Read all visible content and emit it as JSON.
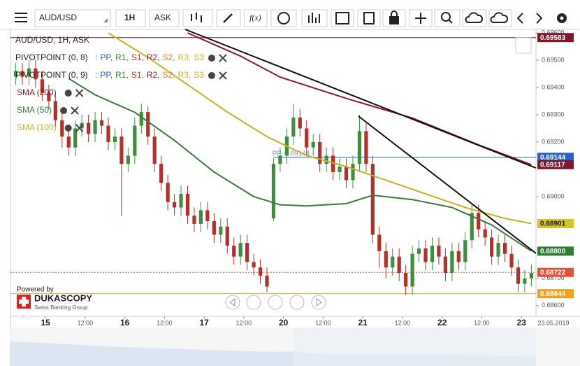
{
  "toolbar": {
    "symbol": "AUD/USD",
    "period": "1H",
    "side": "ASK",
    "formula": "f(x)"
  },
  "chart_data": {
    "type": "candlestick",
    "title": "AUD/USD, 1H, ASK",
    "open": [
      0.6944,
      0.6946,
      0.6944,
      0.6947,
      0.6943,
      0.6938,
      0.6935,
      0.6928,
      0.6922,
      0.6918,
      0.6925,
      0.6927,
      0.6923,
      0.6928,
      0.6926,
      0.692,
      0.6922,
      0.6912,
      0.6915,
      0.6926,
      0.6931,
      0.6922,
      0.6912,
      0.6905,
      0.6898,
      0.6896,
      0.6901,
      0.6893,
      0.689,
      0.6895,
      0.6891,
      0.6886,
      0.6889,
      0.6882,
      0.6878,
      0.6883,
      0.6876,
      0.6874,
      0.6871,
      0.6892,
      0.6912,
      0.6915,
      0.6922,
      0.6929,
      0.6925,
      0.6918,
      0.692,
      0.6912,
      0.6915,
      0.6909,
      0.6911,
      0.6906,
      0.6912,
      0.6924,
      0.6912,
      0.6886,
      0.688,
      0.6874,
      0.6878,
      0.6872,
      0.6867,
      0.6879,
      0.6881,
      0.6876,
      0.6882,
      0.6878,
      0.6872,
      0.688,
      0.6876,
      0.6884,
      0.6894,
      0.6888,
      0.6885,
      0.6878,
      0.6883,
      0.6879,
      0.6874,
      0.6868,
      0.687
    ],
    "high": [
      0.6949,
      0.6949,
      0.695,
      0.695,
      0.6946,
      0.6941,
      0.6938,
      0.6931,
      0.6925,
      0.6928,
      0.693,
      0.693,
      0.6931,
      0.6931,
      0.6929,
      0.6925,
      0.6925,
      0.6918,
      0.6929,
      0.6934,
      0.6933,
      0.6925,
      0.6915,
      0.6908,
      0.6901,
      0.6904,
      0.6904,
      0.6896,
      0.6898,
      0.6898,
      0.6894,
      0.6892,
      0.6892,
      0.6885,
      0.6886,
      0.6886,
      0.6879,
      0.6877,
      0.6874,
      0.6914,
      0.6918,
      0.6925,
      0.6934,
      0.6932,
      0.6928,
      0.6923,
      0.6923,
      0.6918,
      0.6918,
      0.6914,
      0.6914,
      0.6915,
      0.693,
      0.6927,
      0.6915,
      0.6889,
      0.6883,
      0.6881,
      0.6881,
      0.6875,
      0.6882,
      0.6884,
      0.6884,
      0.6885,
      0.6885,
      0.6881,
      0.6883,
      0.6883,
      0.6887,
      0.6897,
      0.6897,
      0.6891,
      0.6888,
      0.6886,
      0.6886,
      0.6882,
      0.6877,
      0.6873,
      0.6875
    ],
    "low": [
      0.6941,
      0.6941,
      0.6941,
      0.694,
      0.6935,
      0.6932,
      0.6925,
      0.6918,
      0.6915,
      0.6915,
      0.6922,
      0.692,
      0.692,
      0.6923,
      0.6917,
      0.6917,
      0.6893,
      0.6909,
      0.6912,
      0.6923,
      0.6919,
      0.6909,
      0.6902,
      0.6895,
      0.6893,
      0.6893,
      0.689,
      0.6887,
      0.6887,
      0.6888,
      0.6883,
      0.6883,
      0.6879,
      0.6875,
      0.6875,
      0.6873,
      0.6871,
      0.6868,
      0.6865,
      0.6891,
      0.6909,
      0.6912,
      0.6919,
      0.6922,
      0.6915,
      0.6915,
      0.6909,
      0.6909,
      0.6906,
      0.6906,
      0.6903,
      0.6903,
      0.6909,
      0.6909,
      0.6883,
      0.6874,
      0.687,
      0.6871,
      0.6869,
      0.6864,
      0.6864,
      0.6876,
      0.6873,
      0.6873,
      0.6875,
      0.6869,
      0.6869,
      0.6873,
      0.6873,
      0.6881,
      0.6885,
      0.6882,
      0.6875,
      0.6875,
      0.6876,
      0.6871,
      0.6865,
      0.6865,
      0.6867
    ],
    "close": [
      0.6946,
      0.6944,
      0.6947,
      0.6943,
      0.6938,
      0.6935,
      0.6928,
      0.6922,
      0.6918,
      0.6925,
      0.6927,
      0.6923,
      0.6928,
      0.6926,
      0.692,
      0.6922,
      0.6912,
      0.6915,
      0.6926,
      0.6931,
      0.6922,
      0.6912,
      0.6905,
      0.6898,
      0.6896,
      0.6901,
      0.6893,
      0.689,
      0.6895,
      0.6891,
      0.6886,
      0.6889,
      0.6882,
      0.6878,
      0.6883,
      0.6876,
      0.6874,
      0.6871,
      0.6867,
      0.6912,
      0.6915,
      0.6922,
      0.6929,
      0.6925,
      0.6918,
      0.692,
      0.6912,
      0.6915,
      0.6909,
      0.6911,
      0.6906,
      0.6912,
      0.6924,
      0.6912,
      0.6886,
      0.688,
      0.6874,
      0.6878,
      0.6872,
      0.6867,
      0.6879,
      0.6881,
      0.6876,
      0.6882,
      0.6878,
      0.6872,
      0.688,
      0.6876,
      0.6884,
      0.6894,
      0.6888,
      0.6885,
      0.6878,
      0.6883,
      0.6879,
      0.6874,
      0.6868,
      0.687,
      0.6872
    ],
    "up_color": "#3e8e3e",
    "down_color": "#b3312b",
    "xlim": [
      -0.8,
      78.7
    ],
    "xticks": [
      {
        "value": 4.5,
        "label": "15"
      },
      {
        "value": 10.5,
        "label": "12:00"
      },
      {
        "value": 16.5,
        "label": "16"
      },
      {
        "value": 22.5,
        "label": "12:00"
      },
      {
        "value": 28.5,
        "label": "17"
      },
      {
        "value": 34.5,
        "label": "12:00"
      },
      {
        "value": 40.5,
        "label": "20"
      },
      {
        "value": 46.5,
        "label": "12:00"
      },
      {
        "value": 52.5,
        "label": "21"
      },
      {
        "value": 58.5,
        "label": "12:00"
      },
      {
        "value": 64.5,
        "label": "22"
      },
      {
        "value": 70.5,
        "label": "12:00"
      },
      {
        "value": 76.5,
        "label": "23"
      }
    ],
    "date_label": "23.05.2019",
    "ylim": [
      0.68561,
      0.69613
    ],
    "yticks": [
      {
        "value": 0.686,
        "label": "0.68600"
      },
      {
        "value": 0.687,
        "label": "0.68700"
      },
      {
        "value": 0.69,
        "label": "0.69000"
      },
      {
        "value": 0.692,
        "label": "0.69200"
      },
      {
        "value": 0.693,
        "label": "0.69300"
      },
      {
        "value": 0.694,
        "label": "0.69400"
      },
      {
        "value": 0.695,
        "label": "0.69500"
      },
      {
        "value": 0.696,
        "label": "0.69600"
      }
    ],
    "series": [
      {
        "name": "SMA (200)",
        "color": "#8b1c30",
        "x": [
          26,
          34,
          40,
          50,
          60,
          70,
          78
        ],
        "values": [
          0.696,
          0.69515,
          0.69438,
          0.6936,
          0.69288,
          0.6919,
          0.69117
        ]
      },
      {
        "name": "SMA (50)",
        "color": "#3d7a3d",
        "x": [
          8,
          12,
          18,
          24,
          30,
          36,
          40,
          44,
          50,
          54,
          60,
          66,
          72,
          78
        ],
        "values": [
          0.69433,
          0.69373,
          0.69309,
          0.69206,
          0.6909,
          0.69,
          0.6897,
          0.68966,
          0.68974,
          0.69005,
          0.68989,
          0.6896,
          0.68896,
          0.688
        ]
      },
      {
        "name": "SMA (100)",
        "color": "#c8b22a",
        "x": [
          14,
          20,
          26,
          32,
          38,
          44,
          50,
          56,
          62,
          68,
          74,
          78
        ],
        "values": [
          0.696,
          0.6951,
          0.6941,
          0.6931,
          0.6922,
          0.6915,
          0.6911,
          0.6906,
          0.6901,
          0.6896,
          0.6892,
          0.68901
        ]
      }
    ],
    "price_lines": [
      {
        "value": 0.69583,
        "label": "0.69583",
        "color": "#7b1a2a",
        "style": "solid",
        "from": -0.8
      },
      {
        "value": 0.69144,
        "label": "0.69144",
        "color": "#2a62c4",
        "style": "solid",
        "from": 39
      },
      {
        "value": 0.69117,
        "label": "0.69117",
        "color": "#7b1a2a",
        "style": "none",
        "from": 78
      },
      {
        "value": 0.68901,
        "label": "0.68901",
        "color": "#d6c229",
        "style": "none",
        "from": 78
      },
      {
        "value": 0.688,
        "label": "0.68800",
        "color": "#2f7d32",
        "style": "none",
        "from": 78
      },
      {
        "value": 0.68722,
        "label": "0.68722",
        "color": "#e0533a",
        "style": "dotted",
        "from": -0.8
      },
      {
        "value": 0.68644,
        "label": "0.68644",
        "color": "#f0a020",
        "style": "solid",
        "from": -0.8
      }
    ],
    "pp_label": "PP, 0.69144",
    "pivot_legends": [
      {
        "name": "PIVOTPOINT (0, 8)",
        "items": [
          {
            "text": ":",
            "color": "#555555"
          },
          {
            "text": "PP,",
            "color": "#2a62c4"
          },
          {
            "text": "R1,",
            "color": "#2f8f2f"
          },
          {
            "text": "S1,",
            "color": "#c0302a"
          },
          {
            "text": "R2,",
            "color": "#8b1c30"
          },
          {
            "text": "S2,",
            "color": "#e08020"
          },
          {
            "text": "R3,",
            "color": "#c8b22a"
          },
          {
            "text": "S3",
            "color": "#c8b22a"
          }
        ]
      },
      {
        "name": "PIVOTPOINT (0, 9)",
        "items": [
          {
            "text": ":",
            "color": "#555555"
          },
          {
            "text": "PP,",
            "color": "#2a62c4"
          },
          {
            "text": "R1,",
            "color": "#2f8f2f"
          },
          {
            "text": "S1,",
            "color": "#c0302a"
          },
          {
            "text": "R2,",
            "color": "#8b1c30"
          },
          {
            "text": "S2,",
            "color": "#e08020"
          },
          {
            "text": "R3,",
            "color": "#c8b22a"
          },
          {
            "text": "S3",
            "color": "#c8b22a"
          }
        ]
      }
    ]
  },
  "branding": {
    "powered": "Powered by",
    "name": "DUKASCOPY",
    "tagline": "Swiss Banking Group"
  }
}
